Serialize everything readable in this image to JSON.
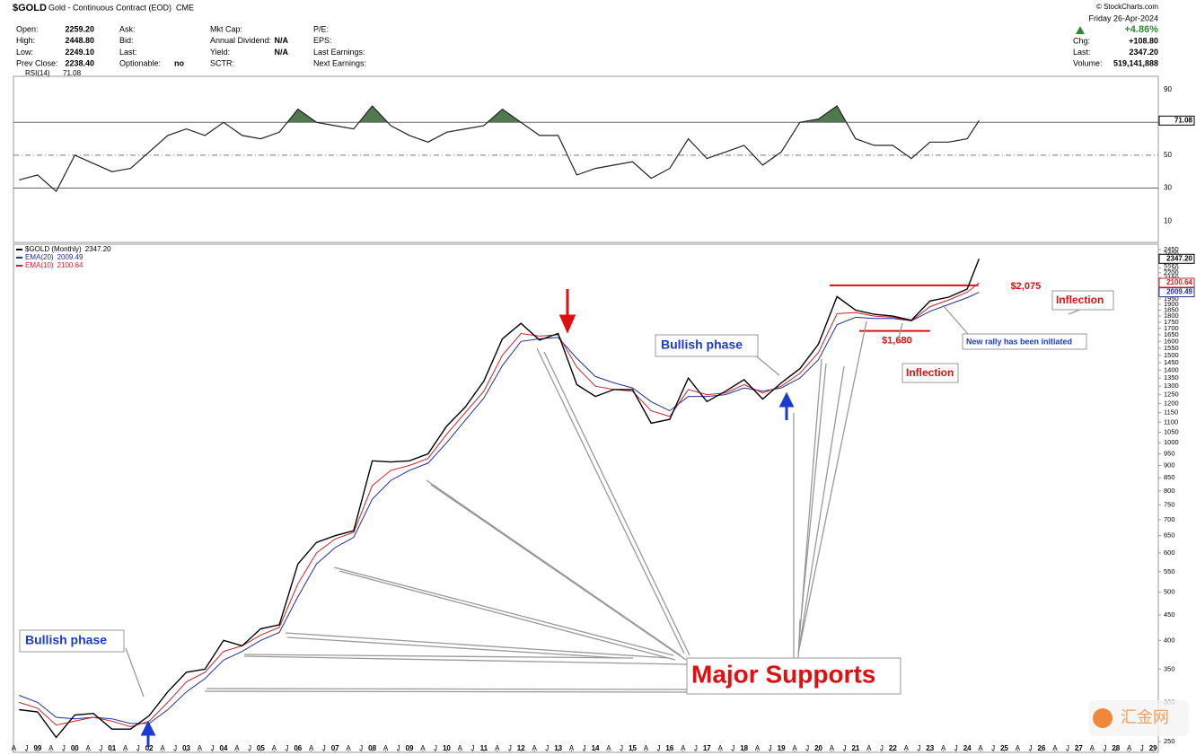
{
  "header": {
    "symbol": "$GOLD",
    "name": "Gold - Continuous Contract (EOD)",
    "exchange": "CME",
    "credit": "© StockCharts.com",
    "fields": [
      [
        {
          "label": "Open:",
          "value": "2259.20"
        },
        {
          "label": "High:",
          "value": "2448.80"
        },
        {
          "label": "Low:",
          "value": "2249.10"
        },
        {
          "label": "Prev Close:",
          "value": "2238.40"
        }
      ],
      [
        {
          "label": "Ask:"
        },
        {
          "label": "Bid:"
        },
        {
          "label": "Last:"
        },
        {
          "label": "Optionable:",
          "value": "no"
        }
      ],
      [
        {
          "label": "Mkt Cap:"
        },
        {
          "label": "Annual Dividend:",
          "value": "N/A"
        },
        {
          "label": "Yield:",
          "value": "N/A"
        },
        {
          "label": "SCTR:"
        }
      ],
      [
        {
          "label": "P/E:"
        },
        {
          "label": "EPS:"
        },
        {
          "label": "Last Earnings:"
        },
        {
          "label": "Next Earnings:"
        }
      ]
    ],
    "date": "Friday 26-Apr-2024",
    "pct_change": "+4.86%",
    "quote": [
      {
        "label": "Chg:",
        "value": "+108.80"
      },
      {
        "label": "Last:",
        "value": "2347.20"
      },
      {
        "label": "Volume:",
        "value": "519,141,888"
      }
    ]
  },
  "chart_data": [
    {
      "type": "line",
      "name": "RSI(14)",
      "last_label": "71.08",
      "color": "#222222",
      "fill_color": "#4e7a4e",
      "overbought": 70,
      "x": [
        1998.5,
        1999,
        1999.5,
        2000,
        2000.5,
        2001,
        2001.5,
        2002,
        2002.5,
        2003,
        2003.5,
        2004,
        2004.5,
        2005,
        2005.5,
        2006,
        2006.5,
        2007,
        2007.5,
        2008,
        2008.5,
        2009,
        2009.5,
        2010,
        2010.5,
        2011,
        2011.5,
        2012,
        2012.5,
        2013,
        2013.5,
        2014,
        2014.5,
        2015,
        2015.5,
        2016,
        2016.5,
        2017,
        2017.5,
        2018,
        2018.5,
        2019,
        2019.5,
        2020,
        2020.5,
        2021,
        2021.5,
        2022,
        2022.5,
        2023,
        2023.5,
        2024,
        2024.32
      ],
      "values": [
        35,
        38,
        28,
        50,
        45,
        40,
        42,
        52,
        62,
        66,
        62,
        70,
        62,
        60,
        64,
        78,
        70,
        68,
        66,
        80,
        68,
        62,
        58,
        64,
        66,
        68,
        78,
        70,
        62,
        62,
        38,
        42,
        44,
        46,
        36,
        42,
        60,
        48,
        52,
        56,
        44,
        52,
        70,
        72,
        80,
        60,
        56,
        56,
        48,
        58,
        58,
        60,
        71.08
      ],
      "xlim": [
        1998.35,
        2029.14
      ],
      "ylim": [
        -3,
        98
      ],
      "yticks": [
        10,
        30,
        50,
        70,
        90
      ],
      "solid_lines": [
        30,
        70
      ],
      "dashed_lines": [
        50
      ]
    },
    {
      "type": "line",
      "log_scale": true,
      "x": [
        1998.5,
        1999,
        1999.5,
        2000,
        2000.5,
        2001,
        2001.5,
        2002,
        2002.5,
        2003,
        2003.5,
        2004,
        2004.5,
        2005,
        2005.5,
        2006,
        2006.5,
        2007,
        2007.5,
        2008,
        2008.5,
        2009,
        2009.5,
        2010,
        2010.5,
        2011,
        2011.5,
        2012,
        2012.5,
        2013,
        2013.5,
        2014,
        2014.5,
        2015,
        2015.5,
        2016,
        2016.5,
        2017,
        2017.5,
        2018,
        2018.5,
        2019,
        2019.5,
        2020,
        2020.5,
        2021,
        2021.5,
        2022,
        2022.5,
        2023,
        2023.5,
        2024,
        2024.32
      ],
      "series": [
        {
          "name": "$GOLD (Monthly)",
          "last_label": "2347.20",
          "color": "#000000",
          "values": [
            290,
            287,
            255,
            283,
            285,
            265,
            265,
            282,
            315,
            345,
            350,
            400,
            390,
            422,
            430,
            570,
            630,
            650,
            665,
            920,
            915,
            920,
            950,
            1080,
            1180,
            1330,
            1620,
            1740,
            1610,
            1660,
            1310,
            1240,
            1280,
            1280,
            1095,
            1115,
            1350,
            1210,
            1270,
            1340,
            1225,
            1320,
            1410,
            1580,
            1970,
            1850,
            1815,
            1800,
            1765,
            1930,
            1965,
            2040,
            2347.2
          ]
        },
        {
          "name": "EMA(20)",
          "last_label": "2009.49",
          "color": "#1f2f9a",
          "values": [
            310,
            300,
            280,
            278,
            280,
            278,
            272,
            272,
            290,
            315,
            335,
            365,
            380,
            400,
            415,
            490,
            570,
            615,
            645,
            770,
            840,
            880,
            910,
            1000,
            1110,
            1230,
            1430,
            1600,
            1620,
            1630,
            1480,
            1360,
            1320,
            1290,
            1210,
            1160,
            1240,
            1240,
            1250,
            1290,
            1270,
            1290,
            1350,
            1470,
            1730,
            1790,
            1780,
            1780,
            1760,
            1840,
            1900,
            1960,
            2009.49
          ]
        },
        {
          "name": "EMA(10)",
          "last_label": "2100.64",
          "color": "#d0202a",
          "values": [
            300,
            292,
            270,
            275,
            280,
            275,
            268,
            275,
            300,
            330,
            345,
            380,
            390,
            410,
            425,
            520,
            600,
            640,
            660,
            820,
            880,
            900,
            930,
            1040,
            1150,
            1270,
            1500,
            1660,
            1640,
            1650,
            1420,
            1300,
            1280,
            1270,
            1160,
            1130,
            1280,
            1250,
            1260,
            1310,
            1260,
            1300,
            1380,
            1520,
            1820,
            1830,
            1800,
            1790,
            1760,
            1880,
            1940,
            2010,
            2100.64
          ]
        }
      ],
      "xlim": [
        1998.35,
        2029.14
      ],
      "ylim": [
        238,
        2512
      ],
      "yticks": [
        250,
        300,
        350,
        400,
        450,
        500,
        550,
        600,
        650,
        700,
        750,
        800,
        850,
        900,
        950,
        1000,
        1050,
        1100,
        1150,
        1200,
        1250,
        1300,
        1350,
        1400,
        1450,
        1500,
        1550,
        1600,
        1650,
        1700,
        1750,
        1800,
        1850,
        1900,
        1950,
        2000,
        2050,
        2100,
        2150,
        2200,
        2250,
        2300,
        2350,
        2400,
        2450
      ],
      "xticks": [
        {
          "value": 1998.36,
          "label": "A"
        },
        {
          "value": 1998.7,
          "label": "J"
        },
        {
          "value": 1999,
          "label": "99"
        },
        {
          "value": 1999.36,
          "label": "A"
        },
        {
          "value": 1999.7,
          "label": "J"
        },
        {
          "value": 2000,
          "label": "00"
        },
        {
          "value": 2000.36,
          "label": "A"
        },
        {
          "value": 2000.7,
          "label": "J"
        },
        {
          "value": 2001,
          "label": "01"
        },
        {
          "value": 2001.36,
          "label": "A"
        },
        {
          "value": 2001.7,
          "label": "J"
        },
        {
          "value": 2002,
          "label": "02"
        },
        {
          "value": 2002.36,
          "label": "A"
        },
        {
          "value": 2002.7,
          "label": "J"
        },
        {
          "value": 2003,
          "label": "03"
        },
        {
          "value": 2003.36,
          "label": "A"
        },
        {
          "value": 2003.7,
          "label": "J"
        },
        {
          "value": 2004,
          "label": "04"
        },
        {
          "value": 2004.36,
          "label": "A"
        },
        {
          "value": 2004.7,
          "label": "J"
        },
        {
          "value": 2005,
          "label": "05"
        },
        {
          "value": 2005.36,
          "label": "A"
        },
        {
          "value": 2005.7,
          "label": "J"
        },
        {
          "value": 2006,
          "label": "06"
        },
        {
          "value": 2006.36,
          "label": "A"
        },
        {
          "value": 2006.7,
          "label": "J"
        },
        {
          "value": 2007,
          "label": "07"
        },
        {
          "value": 2007.36,
          "label": "A"
        },
        {
          "value": 2007.7,
          "label": "J"
        },
        {
          "value": 2008,
          "label": "08"
        },
        {
          "value": 2008.36,
          "label": "A"
        },
        {
          "value": 2008.7,
          "label": "J"
        },
        {
          "value": 2009,
          "label": "09"
        },
        {
          "value": 2009.36,
          "label": "A"
        },
        {
          "value": 2009.7,
          "label": "J"
        },
        {
          "value": 2010,
          "label": "10"
        },
        {
          "value": 2010.36,
          "label": "A"
        },
        {
          "value": 2010.7,
          "label": "J"
        },
        {
          "value": 2011,
          "label": "11"
        },
        {
          "value": 2011.36,
          "label": "A"
        },
        {
          "value": 2011.7,
          "label": "J"
        },
        {
          "value": 2012,
          "label": "12"
        },
        {
          "value": 2012.36,
          "label": "A"
        },
        {
          "value": 2012.7,
          "label": "J"
        },
        {
          "value": 2013,
          "label": "13"
        },
        {
          "value": 2013.36,
          "label": "A"
        },
        {
          "value": 2013.7,
          "label": "J"
        },
        {
          "value": 2014,
          "label": "14"
        },
        {
          "value": 2014.36,
          "label": "A"
        },
        {
          "value": 2014.7,
          "label": "J"
        },
        {
          "value": 2015,
          "label": "15"
        },
        {
          "value": 2015.36,
          "label": "A"
        },
        {
          "value": 2015.7,
          "label": "J"
        },
        {
          "value": 2016,
          "label": "16"
        },
        {
          "value": 2016.36,
          "label": "A"
        },
        {
          "value": 2016.7,
          "label": "J"
        },
        {
          "value": 2017,
          "label": "17"
        },
        {
          "value": 2017.36,
          "label": "A"
        },
        {
          "value": 2017.7,
          "label": "J"
        },
        {
          "value": 2018,
          "label": "18"
        },
        {
          "value": 2018.36,
          "label": "A"
        },
        {
          "value": 2018.7,
          "label": "J"
        },
        {
          "value": 2019,
          "label": "19"
        },
        {
          "value": 2019.36,
          "label": "A"
        },
        {
          "value": 2019.7,
          "label": "J"
        },
        {
          "value": 2020,
          "label": "20"
        },
        {
          "value": 2020.36,
          "label": "A"
        },
        {
          "value": 2020.7,
          "label": "J"
        },
        {
          "value": 2021,
          "label": "21"
        },
        {
          "value": 2021.36,
          "label": "A"
        },
        {
          "value": 2021.7,
          "label": "J"
        },
        {
          "value": 2022,
          "label": "22"
        },
        {
          "value": 2022.36,
          "label": "A"
        },
        {
          "value": 2022.7,
          "label": "J"
        },
        {
          "value": 2023,
          "label": "23"
        },
        {
          "value": 2023.36,
          "label": "A"
        },
        {
          "value": 2023.7,
          "label": "J"
        },
        {
          "value": 2024,
          "label": "24"
        },
        {
          "value": 2024.36,
          "label": "A"
        },
        {
          "value": 2024.7,
          "label": "J"
        },
        {
          "value": 2025,
          "label": "25"
        },
        {
          "value": 2025.36,
          "label": "A"
        },
        {
          "value": 2025.7,
          "label": "J"
        },
        {
          "value": 2026,
          "label": "26"
        },
        {
          "value": 2026.36,
          "label": "A"
        },
        {
          "value": 2026.7,
          "label": "J"
        },
        {
          "value": 2027,
          "label": "27"
        },
        {
          "value": 2027.36,
          "label": "A"
        },
        {
          "value": 2027.7,
          "label": "J"
        },
        {
          "value": 2028,
          "label": "28"
        },
        {
          "value": 2028.36,
          "label": "A"
        },
        {
          "value": 2028.7,
          "label": "J"
        },
        {
          "value": 2029,
          "label": "29"
        }
      ],
      "levels": [
        {
          "value": 2075,
          "label": "$2,075",
          "from": 2020.3,
          "to": 2024.3
        },
        {
          "value": 1680,
          "label": "$1,680",
          "from": 2021.1,
          "to": 2023.0
        }
      ],
      "annotations": {
        "bullish_1": "Bullish phase",
        "bullish_2": "Bullish phase",
        "supports": "Major Supports",
        "inflection_1": "Inflection",
        "inflection_2": "Inflection",
        "rally": "New rally has been initiated"
      }
    }
  ],
  "watermark": "汇金网"
}
